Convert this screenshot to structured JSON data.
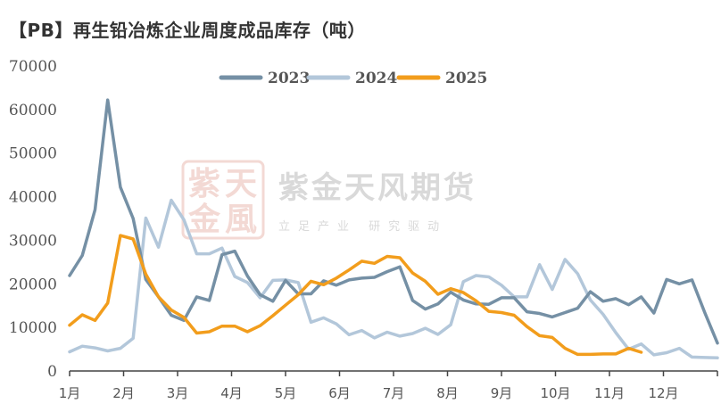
{
  "title": "【PB】再生铅冶炼企业周度成品库存（吨）",
  "watermark": {
    "name": "紫金天风期货",
    "tagline": "立足产业 研究驱动",
    "logo_chars": "紫天金風"
  },
  "colors": {
    "s2023": "#7590a5",
    "s2024": "#b3c7da",
    "s2025": "#f29d1c",
    "axis": "#444444"
  },
  "chart_data": {
    "type": "line",
    "title": "【PB】再生铅冶炼企业周度成品库存（吨）",
    "xlabel": "",
    "ylabel": "",
    "ylim": [
      0,
      70000
    ],
    "yticks": [
      "0",
      "10000",
      "20000",
      "30000",
      "40000",
      "50000",
      "60000",
      "70000"
    ],
    "xticks": [
      "1月",
      "2月",
      "3月",
      "4月",
      "5月",
      "6月",
      "7月",
      "8月",
      "9月",
      "10月",
      "11月",
      "12月"
    ],
    "legend": [
      "2023",
      "2024",
      "2025"
    ],
    "legend_position": "top",
    "series": [
      {
        "name": "2023",
        "values": [
          21900,
          26500,
          37000,
          62200,
          42200,
          35000,
          21000,
          17000,
          12800,
          11600,
          17000,
          16200,
          26700,
          27500,
          21800,
          17500,
          16000,
          20800,
          17700,
          17700,
          20700,
          19700,
          20900,
          21300,
          21500,
          22800,
          23900,
          16200,
          14200,
          15400,
          18100,
          16300,
          15400,
          15300,
          16800,
          16800,
          13600,
          13200,
          12400,
          13400,
          14400,
          18200,
          16000,
          16600,
          15200,
          17000,
          13300,
          21000,
          20000,
          20900,
          13400,
          6400
        ]
      },
      {
        "name": "2024",
        "values": [
          4400,
          5700,
          5300,
          4600,
          5200,
          7500,
          35100,
          28400,
          39200,
          34700,
          26900,
          26900,
          28200,
          21700,
          20300,
          16800,
          20800,
          20900,
          20300,
          11200,
          12200,
          10800,
          8300,
          9300,
          7600,
          8900,
          8000,
          8600,
          9800,
          8400,
          10600,
          20500,
          21900,
          21600,
          19700,
          17000,
          17000,
          24400,
          18700,
          25600,
          22300,
          16300,
          13000,
          8800,
          5000,
          6200,
          3700,
          4200,
          5200,
          3200,
          3100,
          3000
        ]
      },
      {
        "name": "2025",
        "values": [
          10500,
          12900,
          11600,
          15600,
          31100,
          30300,
          22200,
          17000,
          14000,
          12300,
          8700,
          9000,
          10300,
          10300,
          9000,
          10400,
          12700,
          15100,
          17500,
          20600,
          19800,
          21300,
          23200,
          25200,
          24700,
          26300,
          26000,
          22500,
          20600,
          17600,
          18900,
          18000,
          16100,
          13700,
          13400,
          12800,
          10200,
          8100,
          7700,
          5200,
          3800,
          3800,
          3900,
          3900,
          5200,
          4300
        ]
      }
    ]
  }
}
